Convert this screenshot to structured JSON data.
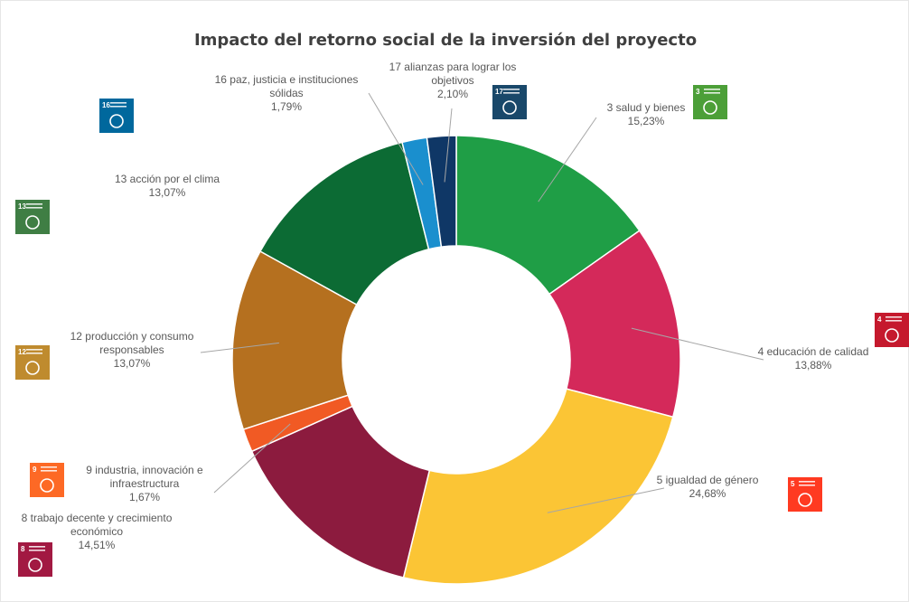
{
  "chart_data": {
    "type": "pie",
    "donut": true,
    "title": "Impacto del retorno social de la inversión del proyecto",
    "slices": [
      {
        "id": "ods3",
        "label": "3 salud y bienes",
        "lines": [
          "3 salud y bienes"
        ],
        "value_text": "15,23%",
        "value": 15.23,
        "color": "#1f9e46",
        "icon_number": "3",
        "icon_color": "#4c9f38"
      },
      {
        "id": "ods4",
        "label": "4 educación de calidad",
        "lines": [
          "4 educación de calidad"
        ],
        "value_text": "13,88%",
        "value": 13.88,
        "color": "#d4295a",
        "icon_number": "4",
        "icon_color": "#c5192d"
      },
      {
        "id": "ods5",
        "label": "5 igualdad de género",
        "lines": [
          "5 igualdad de género"
        ],
        "value_text": "24,68%",
        "value": 24.68,
        "color": "#fbc535",
        "icon_number": "5",
        "icon_color": "#ff3a21"
      },
      {
        "id": "ods8",
        "label": "8 trabajo decente y crecimiento económico",
        "lines": [
          "8 trabajo decente y crecimiento",
          "económico"
        ],
        "value_text": "14,51%",
        "value": 14.51,
        "color": "#8c1b3e",
        "icon_number": "8",
        "icon_color": "#a21942"
      },
      {
        "id": "ods9",
        "label": "9 industria, innovación e infraestructura",
        "lines": [
          "9 industria, innovación e",
          "infraestructura"
        ],
        "value_text": "1,67%",
        "value": 1.67,
        "color": "#f15a24",
        "icon_number": "9",
        "icon_color": "#fd6925"
      },
      {
        "id": "ods12",
        "label": "12 producción y consumo responsables",
        "lines": [
          "12 producción y consumo",
          "responsables"
        ],
        "value_text": "13,07%",
        "value": 13.07,
        "color": "#b5701f",
        "icon_number": "12",
        "icon_color": "#bf8b2e"
      },
      {
        "id": "ods13",
        "label": "13 acción por el clima",
        "lines": [
          "13 acción por el clima"
        ],
        "value_text": "13,07%",
        "value": 13.07,
        "color": "#0c6b34",
        "icon_number": "13",
        "icon_color": "#3f7e44"
      },
      {
        "id": "ods16",
        "label": "16 paz, justicia e instituciones sólidas",
        "lines": [
          "16 paz, justicia e instituciones",
          "sólidas"
        ],
        "value_text": "1,79%",
        "value": 1.79,
        "color": "#1a8fce",
        "icon_number": "16",
        "icon_color": "#00689d"
      },
      {
        "id": "ods17",
        "label": "17 alianzas para lograr los objetivos",
        "lines": [
          "17 alianzas para lograr los",
          "objetivos"
        ],
        "value_text": "2,10%",
        "value": 2.1,
        "color": "#0f3766",
        "icon_number": "17",
        "icon_color": "#19486a"
      }
    ],
    "legend": "none",
    "labels": "outside-with-leader-lines"
  }
}
